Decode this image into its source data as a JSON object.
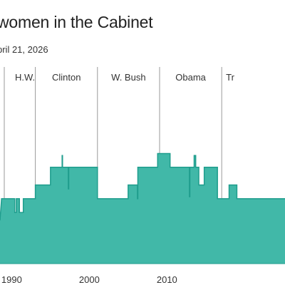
{
  "header": {
    "title": "women in the Cabinet",
    "subtitle": "pril 21, 2026"
  },
  "colors": {
    "area_fill": "#41b8a8",
    "area_stroke": "#1f9d8d",
    "divider": "#999999",
    "text": "#222222"
  },
  "chart_data": {
    "type": "area",
    "title": "women in the Cabinet",
    "subtitle": "pril 21, 2026",
    "xlabel": "",
    "ylabel": "",
    "xlim": [
      1988.5,
      2025.2
    ],
    "ylim": [
      0,
      10
    ],
    "grid": false,
    "administrations": [
      {
        "label": "H.W.",
        "start": 1989.05,
        "end": 1993.05
      },
      {
        "label": "Clinton",
        "start": 1993.05,
        "end": 2001.05
      },
      {
        "label": "W. Bush",
        "start": 2001.05,
        "end": 2009.05
      },
      {
        "label": "Obama",
        "start": 2009.05,
        "end": 2017.05
      },
      {
        "label": "Tr",
        "start": 2017.05,
        "end": 2021.05
      }
    ],
    "x_ticks": [
      1990,
      2000,
      2010
    ],
    "series": [
      {
        "points": [
          [
            1988.5,
            2.2
          ],
          [
            1988.7,
            3.3
          ],
          [
            1990.4,
            3.3
          ],
          [
            1990.4,
            2.6
          ],
          [
            1990.6,
            2.6
          ],
          [
            1990.6,
            3.3
          ],
          [
            1991.0,
            3.3
          ],
          [
            1991.0,
            2.6
          ],
          [
            1991.5,
            2.6
          ],
          [
            1991.5,
            3.3
          ],
          [
            1993.05,
            3.3
          ],
          [
            1993.05,
            4.0
          ],
          [
            1995.0,
            4.0
          ],
          [
            1995.0,
            4.9
          ],
          [
            1996.5,
            4.9
          ],
          [
            1996.5,
            5.5
          ],
          [
            1996.55,
            5.5
          ],
          [
            1996.55,
            4.9
          ],
          [
            1997.3,
            4.9
          ],
          [
            1997.3,
            3.8
          ],
          [
            1997.35,
            3.8
          ],
          [
            1997.35,
            4.9
          ],
          [
            2001.05,
            4.9
          ],
          [
            2001.05,
            3.3
          ],
          [
            2005.0,
            3.3
          ],
          [
            2005.0,
            4.0
          ],
          [
            2006.2,
            4.0
          ],
          [
            2006.2,
            3.3
          ],
          [
            2006.25,
            3.3
          ],
          [
            2006.25,
            4.9
          ],
          [
            2008.8,
            4.9
          ],
          [
            2008.8,
            5.6
          ],
          [
            2010.4,
            5.6
          ],
          [
            2010.4,
            4.9
          ],
          [
            2012.9,
            4.9
          ],
          [
            2012.9,
            3.4
          ],
          [
            2012.95,
            3.4
          ],
          [
            2012.95,
            4.9
          ],
          [
            2013.5,
            4.9
          ],
          [
            2013.5,
            5.5
          ],
          [
            2013.7,
            5.5
          ],
          [
            2013.7,
            4.9
          ],
          [
            2014.1,
            4.9
          ],
          [
            2014.1,
            4.0
          ],
          [
            2014.8,
            4.0
          ],
          [
            2014.8,
            4.9
          ],
          [
            2016.5,
            4.9
          ],
          [
            2016.5,
            3.3
          ],
          [
            2018.0,
            3.3
          ],
          [
            2018.0,
            4.0
          ],
          [
            2019.0,
            4.0
          ],
          [
            2019.0,
            3.3
          ],
          [
            2025.2,
            3.3
          ]
        ]
      }
    ]
  }
}
